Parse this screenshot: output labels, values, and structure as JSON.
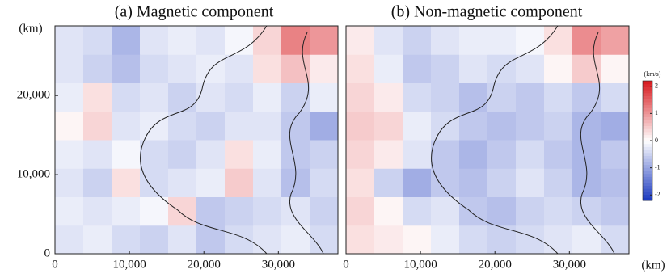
{
  "chart_data": [
    {
      "type": "heatmap",
      "title": "(a)  Magnetic component",
      "ylabel": "(km)",
      "xlim": [
        0,
        38000
      ],
      "ylim": [
        0,
        28800
      ],
      "xticks": [
        0,
        {
          "value": 10000,
          "label": "10,000"
        },
        {
          "value": 20000,
          "label": "20,000"
        },
        {
          "value": 30000,
          "label": "30,000"
        }
      ],
      "yticks": [
        0,
        {
          "value": 10000,
          "label": "10,000"
        },
        {
          "value": 20000,
          "label": "20,000"
        }
      ],
      "z": [
        [
          -0.3,
          -0.2,
          -0.4,
          -0.5,
          -0.3,
          -0.6,
          -0.4,
          -0.3,
          -0.2,
          -0.4
        ],
        [
          -0.2,
          -0.3,
          -0.2,
          -0.1,
          0.4,
          -0.6,
          -0.5,
          -0.4,
          -0.3,
          -0.5
        ],
        [
          -0.3,
          -0.5,
          0.3,
          -0.4,
          -0.3,
          -0.2,
          0.5,
          -0.3,
          -0.7,
          -0.4
        ],
        [
          -0.2,
          -0.3,
          -0.1,
          -0.4,
          -0.5,
          -0.3,
          0.3,
          -0.2,
          -0.6,
          -0.5
        ],
        [
          0.1,
          0.4,
          -0.3,
          -0.2,
          -0.4,
          -0.5,
          -0.3,
          -0.3,
          -0.6,
          -0.9
        ],
        [
          -0.2,
          0.3,
          -0.4,
          -0.3,
          -0.5,
          -0.3,
          -0.4,
          -0.2,
          -0.5,
          -0.2
        ],
        [
          -0.3,
          -0.5,
          -0.7,
          -0.4,
          -0.3,
          -0.2,
          -0.3,
          0.3,
          0.6,
          0.2
        ],
        [
          -0.3,
          -0.4,
          -0.8,
          -0.3,
          -0.2,
          -0.3,
          -0.1,
          0.4,
          1.2,
          1.0
        ]
      ]
    },
    {
      "type": "heatmap",
      "title": "(b)  Non-magnetic component",
      "xlabel": "(km)",
      "xlim": [
        0,
        38000
      ],
      "ylim": [
        0,
        28800
      ],
      "xticks": [
        0,
        {
          "value": 10000,
          "label": "10,000"
        },
        {
          "value": 20000,
          "label": "20,000"
        },
        {
          "value": 30000,
          "label": "30,000"
        }
      ],
      "z": [
        [
          0.3,
          0.2,
          0.1,
          -0.2,
          -0.4,
          -0.5,
          -0.4,
          -0.3,
          -0.2,
          -0.4
        ],
        [
          0.4,
          0.1,
          -0.4,
          -0.3,
          -0.6,
          -0.7,
          -0.5,
          -0.4,
          -0.5,
          -0.6
        ],
        [
          0.3,
          -0.5,
          -0.9,
          -0.6,
          -0.7,
          -0.5,
          -0.3,
          -0.5,
          -0.8,
          -0.7
        ],
        [
          0.4,
          0.2,
          -0.3,
          -0.6,
          -0.8,
          -0.6,
          -0.4,
          -0.6,
          -0.8,
          -0.6
        ],
        [
          0.5,
          0.4,
          -0.2,
          -0.4,
          -0.6,
          -0.7,
          -0.6,
          -0.5,
          -0.8,
          -0.9
        ],
        [
          0.4,
          0.2,
          -0.4,
          -0.5,
          -0.7,
          -0.5,
          -0.6,
          -0.4,
          -0.6,
          -0.4
        ],
        [
          0.3,
          -0.2,
          -0.6,
          -0.5,
          -0.3,
          -0.4,
          -0.3,
          0.1,
          0.5,
          0.1
        ],
        [
          0.2,
          -0.3,
          -0.5,
          -0.3,
          -0.2,
          -0.2,
          -0.1,
          0.3,
          1.1,
          0.9
        ]
      ],
      "colorbar": {
        "label": "(km/s)",
        "lim": [
          -2.2,
          2.2
        ],
        "ticks": [
          2,
          1,
          0,
          -1,
          -2
        ]
      }
    }
  ]
}
